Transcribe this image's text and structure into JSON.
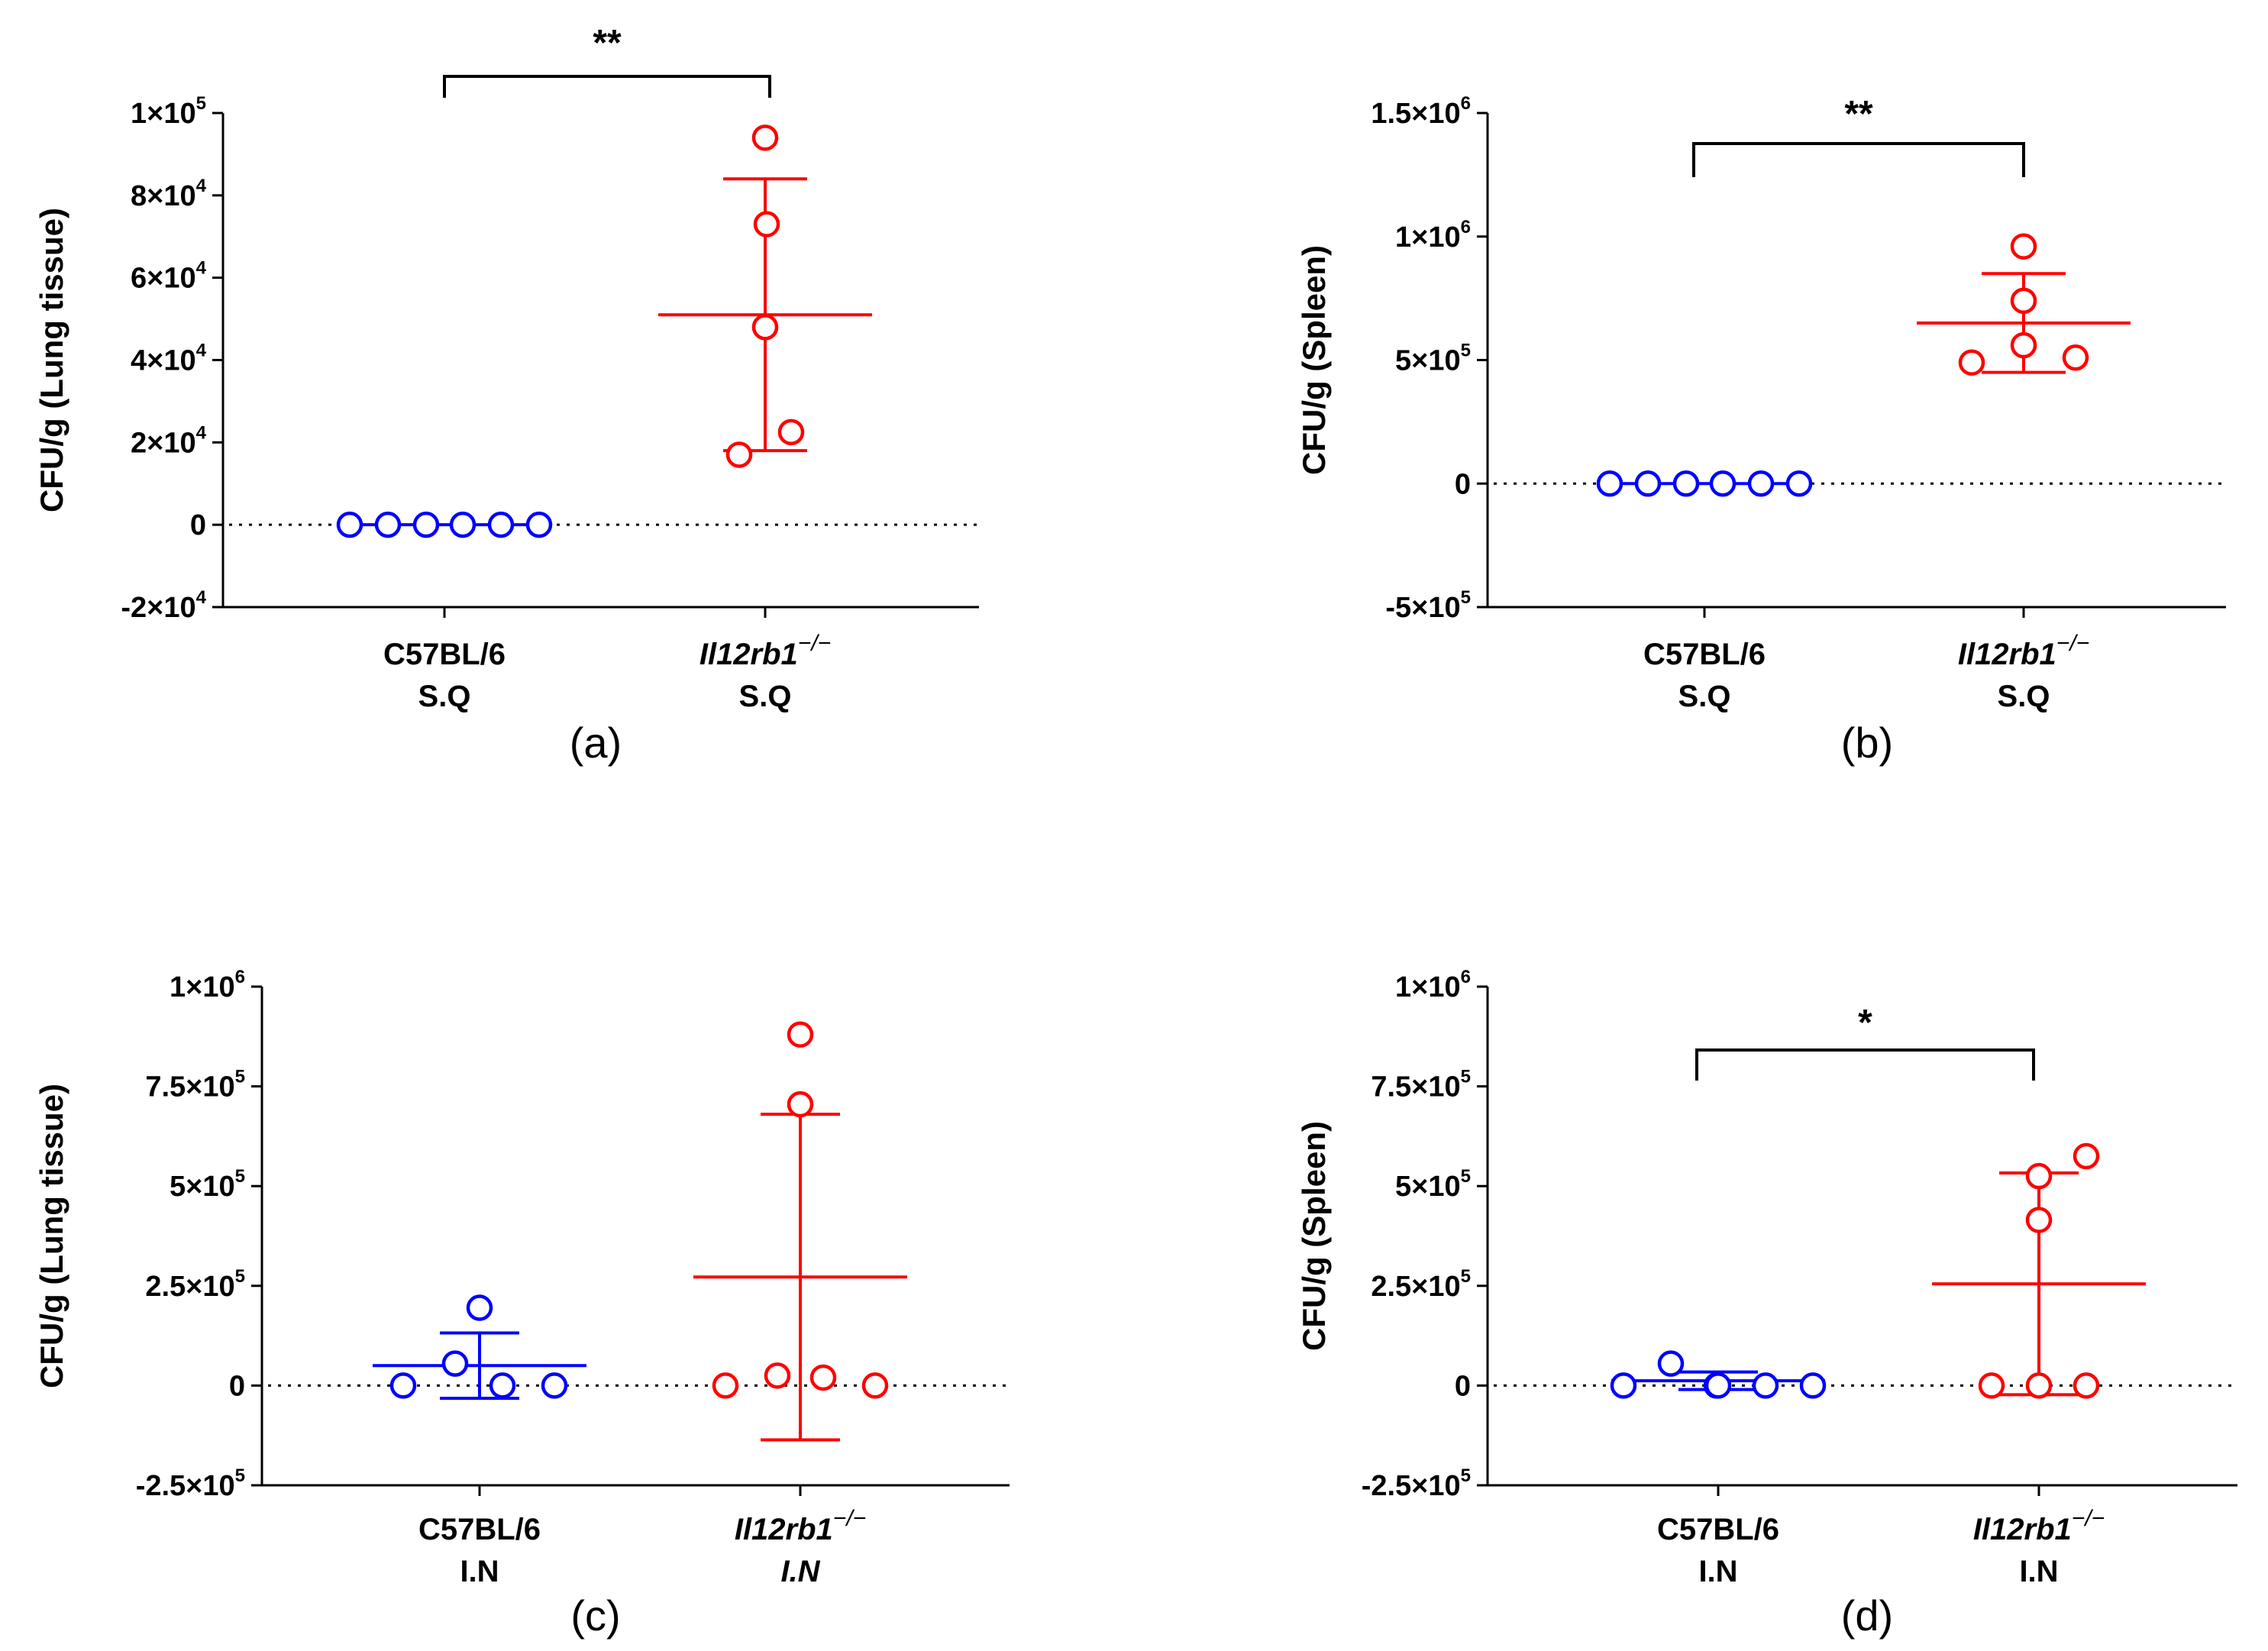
{
  "chart_data": [
    {
      "type": "scatter",
      "panel_label": "(a)",
      "ylabel": "CFU/g (Lung tissue)",
      "ylim": [
        -20000,
        100000
      ],
      "yticks": [
        {
          "value": 100000,
          "mant": "1×10",
          "exp": "5"
        },
        {
          "value": 80000,
          "mant": "8×10",
          "exp": "4"
        },
        {
          "value": 60000,
          "mant": "6×10",
          "exp": "4"
        },
        {
          "value": 40000,
          "mant": "4×10",
          "exp": "4"
        },
        {
          "value": 20000,
          "mant": "2×10",
          "exp": "4"
        },
        {
          "value": 0,
          "mant": "0",
          "exp": ""
        },
        {
          "value": -20000,
          "mant": "-2×10",
          "exp": "4"
        }
      ],
      "categories": [
        {
          "name": "C57BL/6",
          "name_sup": "",
          "name_italic": false,
          "route": "S.Q",
          "route_italic": false
        },
        {
          "name": "Il12rb1",
          "name_sup": "−/−",
          "name_italic": true,
          "route": "S.Q",
          "route_italic": false
        }
      ],
      "series": [
        {
          "name": "C57BL/6 S.Q",
          "color": "#0000ff",
          "values": [
            0,
            0,
            0,
            0,
            0,
            0
          ],
          "mean": 0,
          "sd": 0
        },
        {
          "name": "Il12rb1−/− S.Q",
          "color": "#ff0000",
          "values": [
            94000,
            73000,
            48000,
            22500,
            17000
          ],
          "mean": 51000,
          "sd": 33000
        }
      ],
      "significance": {
        "label": "**",
        "between": [
          0,
          1
        ]
      }
    },
    {
      "type": "scatter",
      "panel_label": "(b)",
      "ylabel": "CFU/g (Spleen)",
      "ylim": [
        -500000,
        1500000
      ],
      "yticks": [
        {
          "value": 1500000,
          "mant": "1.5×10",
          "exp": "6"
        },
        {
          "value": 1000000,
          "mant": "1×10",
          "exp": "6"
        },
        {
          "value": 500000,
          "mant": "5×10",
          "exp": "5"
        },
        {
          "value": 0,
          "mant": "0",
          "exp": ""
        },
        {
          "value": -500000,
          "mant": "-5×10",
          "exp": "5"
        }
      ],
      "categories": [
        {
          "name": "C57BL/6",
          "name_sup": "",
          "name_italic": false,
          "route": "S.Q",
          "route_italic": false
        },
        {
          "name": "Il12rb1",
          "name_sup": "−/−",
          "name_italic": true,
          "route": "S.Q",
          "route_italic": false
        }
      ],
      "series": [
        {
          "name": "C57BL/6 S.Q",
          "color": "#0000ff",
          "values": [
            0,
            0,
            0,
            0,
            0,
            0
          ],
          "mean": 0,
          "sd": 0
        },
        {
          "name": "Il12rb1−/− S.Q",
          "color": "#ff0000",
          "values": [
            960000,
            740000,
            560000,
            510000,
            490000
          ],
          "mean": 650000,
          "sd": 200000
        }
      ],
      "significance": {
        "label": "**",
        "between": [
          0,
          1
        ]
      }
    },
    {
      "type": "scatter",
      "panel_label": "(c)",
      "ylabel": "CFU/g (Lung tissue)",
      "ylim": [
        -250000,
        1000000
      ],
      "yticks": [
        {
          "value": 1000000,
          "mant": "1×10",
          "exp": "6"
        },
        {
          "value": 750000,
          "mant": "7.5×10",
          "exp": "5"
        },
        {
          "value": 500000,
          "mant": "5×10",
          "exp": "5"
        },
        {
          "value": 250000,
          "mant": "2.5×10",
          "exp": "5"
        },
        {
          "value": 0,
          "mant": "0",
          "exp": ""
        },
        {
          "value": -250000,
          "mant": "-2.5×10",
          "exp": "5"
        }
      ],
      "categories": [
        {
          "name": "C57BL/6",
          "name_sup": "",
          "name_italic": false,
          "route": "I.N",
          "route_italic": false
        },
        {
          "name": "Il12rb1",
          "name_sup": "−/−",
          "name_italic": true,
          "route": "I.N",
          "route_italic": true
        }
      ],
      "series": [
        {
          "name": "C57BL/6 I.N",
          "color": "#0000ff",
          "values": [
            195000,
            55000,
            0,
            0,
            0
          ],
          "mean": 50000,
          "sd": 82000
        },
        {
          "name": "Il12rb1−/− I.N",
          "color": "#ff0000",
          "values": [
            880000,
            705000,
            25000,
            0,
            20000,
            0
          ],
          "mean": 272000,
          "sd": 408000
        }
      ],
      "significance": null
    },
    {
      "type": "scatter",
      "panel_label": "(d)",
      "ylabel": "CFU/g (Spleen)",
      "ylim": [
        -250000,
        1000000
      ],
      "yticks": [
        {
          "value": 1000000,
          "mant": "1×10",
          "exp": "6"
        },
        {
          "value": 750000,
          "mant": "7.5×10",
          "exp": "5"
        },
        {
          "value": 500000,
          "mant": "5×10",
          "exp": "5"
        },
        {
          "value": 250000,
          "mant": "2.5×10",
          "exp": "5"
        },
        {
          "value": 0,
          "mant": "0",
          "exp": ""
        },
        {
          "value": -250000,
          "mant": "-2.5×10",
          "exp": "5"
        }
      ],
      "categories": [
        {
          "name": "C57BL/6",
          "name_sup": "",
          "name_italic": false,
          "route": "I.N",
          "route_italic": false
        },
        {
          "name": "Il12rb1",
          "name_sup": "−/−",
          "name_italic": true,
          "route": "I.N",
          "route_italic": false
        }
      ],
      "series": [
        {
          "name": "C57BL/6 I.N",
          "color": "#0000ff",
          "values": [
            55000,
            0,
            0,
            0,
            0,
            0
          ],
          "mean": 12000,
          "sd": 22000
        },
        {
          "name": "Il12rb1−/− I.N",
          "color": "#ff0000",
          "values": [
            575000,
            525000,
            415000,
            0,
            0,
            0
          ],
          "mean": 255000,
          "sd": 278000
        }
      ],
      "significance": {
        "label": "*",
        "between": [
          0,
          1
        ]
      }
    }
  ]
}
